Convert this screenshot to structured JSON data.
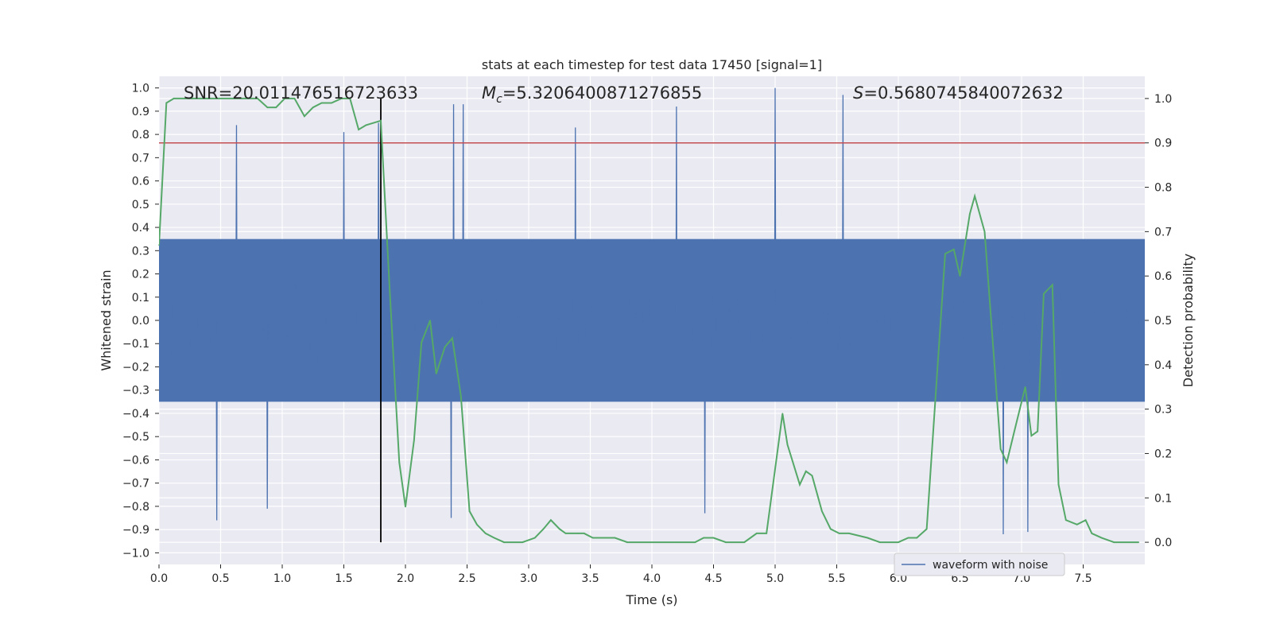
{
  "chart_data": {
    "type": "line",
    "title": "stats at each timestep for test data 17450 [signal=1]",
    "xlabel": "Time (s)",
    "ylabel_left": "Whitened strain",
    "ylabel_right": "Detection probability",
    "xlim": [
      0.0,
      8.0
    ],
    "ylim_left": [
      -1.05,
      1.05
    ],
    "ylim_right": [
      -0.05,
      1.05
    ],
    "x_ticks": [
      "0.0",
      "0.5",
      "1.0",
      "1.5",
      "2.0",
      "2.5",
      "3.0",
      "3.5",
      "4.0",
      "4.5",
      "5.0",
      "5.5",
      "6.0",
      "6.5",
      "7.0",
      "7.5"
    ],
    "y_left_ticks": [
      "1.0",
      "0.9",
      "0.8",
      "0.7",
      "0.6",
      "0.5",
      "0.4",
      "0.3",
      "0.2",
      "0.1",
      "0.0",
      "−0.1",
      "−0.2",
      "−0.3",
      "−0.4",
      "−0.5",
      "−0.6",
      "−0.7",
      "−0.8",
      "−0.9",
      "−1.0"
    ],
    "y_right_ticks": [
      "1.0",
      "0.9",
      "0.8",
      "0.7",
      "0.6",
      "0.5",
      "0.4",
      "0.3",
      "0.2",
      "0.1",
      "0.0"
    ],
    "grid": true,
    "annotations": {
      "snr": "SNR=20.011476516723633",
      "mc_label": "M",
      "mc_sub": "c",
      "mc_value": "=5.3206400871276855",
      "s_label": "S",
      "s_value": "=0.5680745840072632"
    },
    "threshold": {
      "y_right": 0.9,
      "color": "#c44e52"
    },
    "event_time": 1.8,
    "series": [
      {
        "name": "waveform with noise",
        "axis": "left",
        "color": "#4c72b0",
        "kind": "noise",
        "sample_rate": 256,
        "core_amplitude": 0.35,
        "peaks": [
          {
            "t": 0.47,
            "v": -0.86
          },
          {
            "t": 0.63,
            "v": 0.84
          },
          {
            "t": 0.88,
            "v": -0.81
          },
          {
            "t": 1.5,
            "v": 0.81
          },
          {
            "t": 1.78,
            "v": 0.85
          },
          {
            "t": 2.39,
            "v": 0.93
          },
          {
            "t": 2.47,
            "v": 0.93
          },
          {
            "t": 2.37,
            "v": -0.85
          },
          {
            "t": 3.38,
            "v": 0.83
          },
          {
            "t": 4.2,
            "v": 0.92
          },
          {
            "t": 4.43,
            "v": -0.83
          },
          {
            "t": 5.0,
            "v": 1.0
          },
          {
            "t": 5.55,
            "v": 0.97
          },
          {
            "t": 6.85,
            "v": -0.92
          },
          {
            "t": 7.05,
            "v": -0.91
          }
        ]
      },
      {
        "name": "",
        "axis": "right",
        "color": "#55a868",
        "x": [
          0.0,
          0.06,
          0.12,
          0.2,
          0.3,
          0.4,
          0.5,
          0.6,
          0.7,
          0.8,
          0.88,
          0.95,
          1.02,
          1.1,
          1.18,
          1.25,
          1.32,
          1.4,
          1.48,
          1.55,
          1.62,
          1.68,
          1.8,
          1.87,
          1.95,
          2.0,
          2.07,
          2.13,
          2.2,
          2.25,
          2.32,
          2.38,
          2.45,
          2.52,
          2.58,
          2.65,
          2.72,
          2.8,
          2.9,
          2.95,
          3.05,
          3.12,
          3.18,
          3.25,
          3.3,
          3.4,
          3.45,
          3.52,
          3.6,
          3.7,
          3.8,
          3.9,
          4.0,
          4.1,
          4.2,
          4.35,
          4.42,
          4.5,
          4.6,
          4.75,
          4.85,
          4.93,
          5.06,
          5.1,
          5.2,
          5.25,
          5.3,
          5.38,
          5.45,
          5.52,
          5.6,
          5.75,
          5.85,
          6.0,
          6.08,
          6.15,
          6.23,
          6.3,
          6.38,
          6.45,
          6.5,
          6.58,
          6.62,
          6.7,
          6.78,
          6.83,
          6.88,
          6.95,
          7.03,
          7.08,
          7.13,
          7.18,
          7.25,
          7.3,
          7.36,
          7.45,
          7.52,
          7.57,
          7.65,
          7.75,
          7.95
        ],
        "y": [
          0.67,
          0.99,
          1.0,
          1.0,
          1.0,
          1.0,
          1.0,
          1.0,
          1.0,
          1.0,
          0.98,
          0.98,
          1.0,
          1.0,
          0.96,
          0.98,
          0.99,
          0.99,
          1.0,
          1.0,
          0.93,
          0.94,
          0.95,
          0.58,
          0.18,
          0.08,
          0.23,
          0.45,
          0.5,
          0.38,
          0.44,
          0.46,
          0.33,
          0.07,
          0.04,
          0.02,
          0.01,
          0.0,
          0.0,
          0.0,
          0.01,
          0.03,
          0.05,
          0.03,
          0.02,
          0.02,
          0.02,
          0.01,
          0.01,
          0.01,
          0.0,
          0.0,
          0.0,
          0.0,
          0.0,
          0.0,
          0.01,
          0.01,
          0.0,
          0.0,
          0.02,
          0.02,
          0.29,
          0.22,
          0.13,
          0.16,
          0.15,
          0.07,
          0.03,
          0.02,
          0.02,
          0.01,
          0.0,
          0.0,
          0.01,
          0.01,
          0.03,
          0.32,
          0.65,
          0.66,
          0.6,
          0.74,
          0.78,
          0.7,
          0.4,
          0.21,
          0.18,
          0.26,
          0.35,
          0.24,
          0.25,
          0.56,
          0.58,
          0.13,
          0.05,
          0.04,
          0.05,
          0.02,
          0.01,
          0.0,
          0.0
        ]
      }
    ],
    "legend": {
      "position": "lower-right",
      "entries": [
        "waveform with noise"
      ]
    }
  }
}
